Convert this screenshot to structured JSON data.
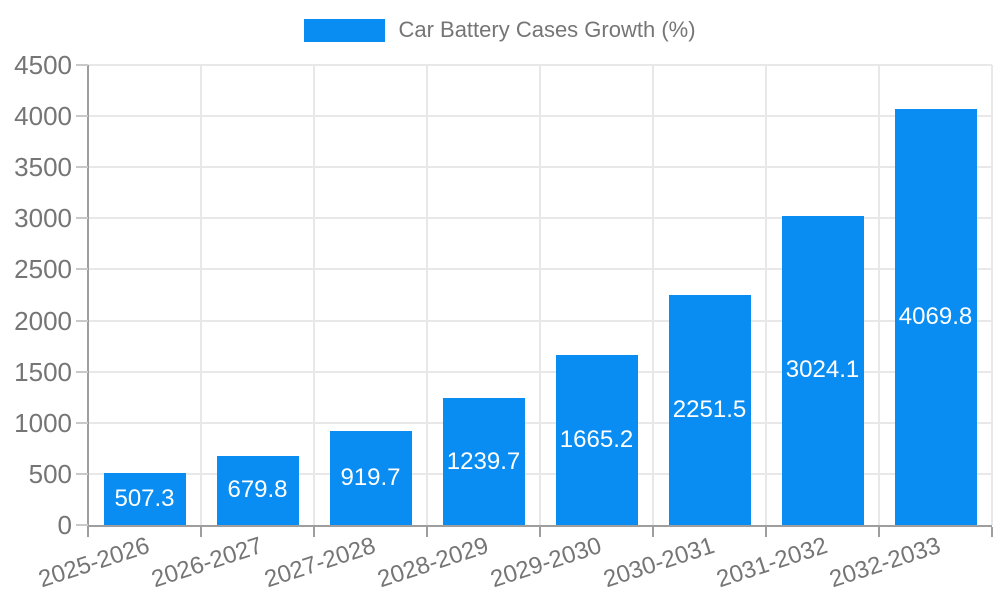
{
  "chart_data": {
    "type": "bar",
    "title": "Car Battery Cases Growth (%)",
    "categories": [
      "2025-2026",
      "2026-2027",
      "2027-2028",
      "2028-2029",
      "2029-2030",
      "2030-2031",
      "2031-2032",
      "2032-2033"
    ],
    "values": [
      507.3,
      679.8,
      919.7,
      1239.7,
      1665.2,
      2251.5,
      3024.1,
      4069.8
    ],
    "value_labels": [
      "507.3",
      "679.8",
      "919.7",
      "1239.7",
      "1665.2",
      "2251.5",
      "3024.1",
      "4069.8"
    ],
    "xlabel": "",
    "ylabel": "",
    "ylim": [
      0,
      4500
    ],
    "yticks": [
      0,
      500,
      1000,
      1500,
      2000,
      2500,
      3000,
      3500,
      4000,
      4500
    ],
    "grid": true,
    "legend_position": "top-center",
    "colors": {
      "bar": "#0A8DF3",
      "grid": "#E8E8E8",
      "axis": "#9E9E9E",
      "y_tick": "#C9C9C9",
      "label_text": "#757575",
      "value_text": "#FFFFFF",
      "background": "#FFFFFF"
    }
  }
}
